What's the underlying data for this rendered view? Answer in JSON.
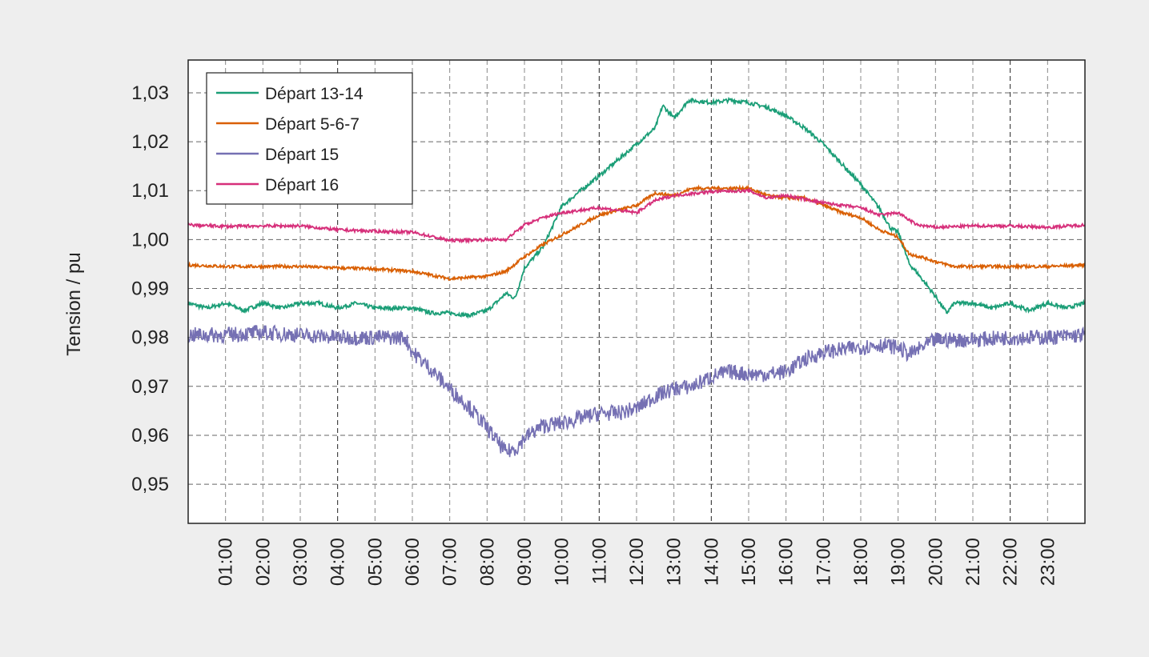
{
  "chart_data": {
    "type": "line",
    "title": "",
    "xlabel": "",
    "ylabel": "Tension / pu",
    "xlim": [
      0,
      24
    ],
    "ylim": [
      0.942,
      1.0367
    ],
    "grid": true,
    "legend_position": "top-left",
    "x_ticks": [
      {
        "value": 1,
        "label": "01:00"
      },
      {
        "value": 2,
        "label": "02:00"
      },
      {
        "value": 3,
        "label": "03:00"
      },
      {
        "value": 4,
        "label": "04:00"
      },
      {
        "value": 5,
        "label": "05:00"
      },
      {
        "value": 6,
        "label": "06:00"
      },
      {
        "value": 7,
        "label": "07:00"
      },
      {
        "value": 8,
        "label": "08:00"
      },
      {
        "value": 9,
        "label": "09:00"
      },
      {
        "value": 10,
        "label": "10:00"
      },
      {
        "value": 11,
        "label": "11:00"
      },
      {
        "value": 12,
        "label": "12:00"
      },
      {
        "value": 13,
        "label": "13:00"
      },
      {
        "value": 14,
        "label": "14:00"
      },
      {
        "value": 15,
        "label": "15:00"
      },
      {
        "value": 16,
        "label": "16:00"
      },
      {
        "value": 17,
        "label": "17:00"
      },
      {
        "value": 18,
        "label": "18:00"
      },
      {
        "value": 19,
        "label": "19:00"
      },
      {
        "value": 20,
        "label": "20:00"
      },
      {
        "value": 21,
        "label": "21:00"
      },
      {
        "value": 22,
        "label": "22:00"
      },
      {
        "value": 23,
        "label": "23:00"
      }
    ],
    "y_ticks": [
      {
        "value": 0.95,
        "label": "0,95"
      },
      {
        "value": 0.96,
        "label": "0,96"
      },
      {
        "value": 0.97,
        "label": "0,97"
      },
      {
        "value": 0.98,
        "label": "0,98"
      },
      {
        "value": 0.99,
        "label": "0,99"
      },
      {
        "value": 1.0,
        "label": "1,00"
      },
      {
        "value": 1.01,
        "label": "1,01"
      },
      {
        "value": 1.02,
        "label": "1,02"
      },
      {
        "value": 1.03,
        "label": "1,03"
      }
    ],
    "series": [
      {
        "name": "Départ 13-14",
        "color": "#1b9e77",
        "x": [
          0,
          0.5,
          1,
          1.5,
          2,
          2.5,
          3,
          3.5,
          4,
          4.5,
          5,
          5.5,
          6,
          6.5,
          7,
          7.5,
          8,
          8.3,
          8.5,
          8.75,
          9,
          9.5,
          10,
          10.5,
          11,
          11.5,
          12,
          12.5,
          12.7,
          13,
          13.4,
          14,
          14.5,
          15,
          15.5,
          16,
          16.5,
          17,
          17.5,
          18,
          18.5,
          18.8,
          19,
          19.3,
          19.5,
          20,
          20.3,
          20.5,
          21,
          21.5,
          22,
          22.5,
          23,
          23.5,
          24
        ],
        "y": [
          0.987,
          0.986,
          0.987,
          0.9855,
          0.987,
          0.986,
          0.987,
          0.987,
          0.986,
          0.987,
          0.986,
          0.986,
          0.986,
          0.985,
          0.985,
          0.9845,
          0.9855,
          0.9875,
          0.989,
          0.988,
          0.9942,
          0.9985,
          1.0068,
          1.01,
          1.013,
          1.0163,
          1.0195,
          1.0228,
          1.0274,
          1.0248,
          1.0285,
          1.028,
          1.0285,
          1.028,
          1.027,
          1.0253,
          1.0228,
          1.0195,
          1.0154,
          1.0113,
          1.0064,
          1.0023,
          1.0015,
          0.995,
          0.9933,
          0.9884,
          0.985,
          0.987,
          0.987,
          0.986,
          0.987,
          0.9855,
          0.987,
          0.986,
          0.987
        ]
      },
      {
        "name": "Départ 5-6-7",
        "color": "#d95f02",
        "x": [
          0,
          1,
          2,
          3,
          4,
          5,
          6,
          7,
          8,
          8.5,
          9,
          9.5,
          10,
          10.5,
          11,
          11.5,
          12,
          12.5,
          13,
          13.5,
          14,
          14.5,
          15,
          15.5,
          16,
          16.5,
          17,
          17.5,
          18,
          18.5,
          19,
          19.3,
          19.6,
          20,
          20.5,
          21,
          22,
          23,
          24
        ],
        "y": [
          0.9948,
          0.9945,
          0.9945,
          0.9945,
          0.9942,
          0.994,
          0.9935,
          0.992,
          0.9925,
          0.9935,
          0.9965,
          0.999,
          1.001,
          1.003,
          1.005,
          1.006,
          1.007,
          1.0095,
          1.009,
          1.0105,
          1.0105,
          1.0105,
          1.0105,
          1.009,
          1.0085,
          1.0085,
          1.007,
          1.0055,
          1.0045,
          1.002,
          1.0005,
          0.997,
          0.9965,
          0.9955,
          0.9945,
          0.9945,
          0.9945,
          0.9945,
          0.9948
        ]
      },
      {
        "name": "Départ 15",
        "color": "#7570b3",
        "x": [
          0,
          1,
          2,
          3,
          4,
          5,
          5.8,
          6,
          6.5,
          7,
          7.5,
          8,
          8.5,
          8.8,
          9,
          9.5,
          10,
          10.5,
          11,
          11.5,
          12,
          12.5,
          13,
          13.5,
          14,
          14.5,
          15,
          15.5,
          16,
          16.5,
          17,
          17.5,
          18,
          18.5,
          19,
          19.3,
          20,
          21,
          22,
          23,
          24
        ],
        "y": [
          0.9805,
          0.9805,
          0.981,
          0.9805,
          0.98,
          0.98,
          0.98,
          0.977,
          0.9735,
          0.9695,
          0.966,
          0.9615,
          0.9565,
          0.9575,
          0.9595,
          0.962,
          0.9625,
          0.9635,
          0.9645,
          0.9645,
          0.9655,
          0.968,
          0.9695,
          0.97,
          0.972,
          0.973,
          0.9725,
          0.9725,
          0.973,
          0.9755,
          0.977,
          0.9775,
          0.978,
          0.9785,
          0.978,
          0.9765,
          0.9795,
          0.9795,
          0.98,
          0.98,
          0.9805
        ]
      },
      {
        "name": "Départ 16",
        "color": "#d62f7a",
        "x": [
          0,
          1,
          2,
          3,
          4,
          5,
          6,
          7,
          8,
          8.5,
          9,
          9.5,
          10,
          11,
          12,
          12.5,
          13,
          14,
          15,
          15.5,
          16,
          17,
          18,
          18.5,
          19,
          19.5,
          20,
          21,
          22,
          23,
          24
        ],
        "y": [
          1.003,
          1.0027,
          1.0028,
          1.0028,
          1.002,
          1.0017,
          1.0015,
          0.9998,
          1.0,
          1.0,
          1.003,
          1.0045,
          1.0055,
          1.0065,
          1.0055,
          1.008,
          1.009,
          1.0098,
          1.01,
          1.0085,
          1.009,
          1.0075,
          1.0065,
          1.005,
          1.0055,
          1.003,
          1.0025,
          1.0028,
          1.0028,
          1.0025,
          1.003
        ]
      }
    ]
  }
}
